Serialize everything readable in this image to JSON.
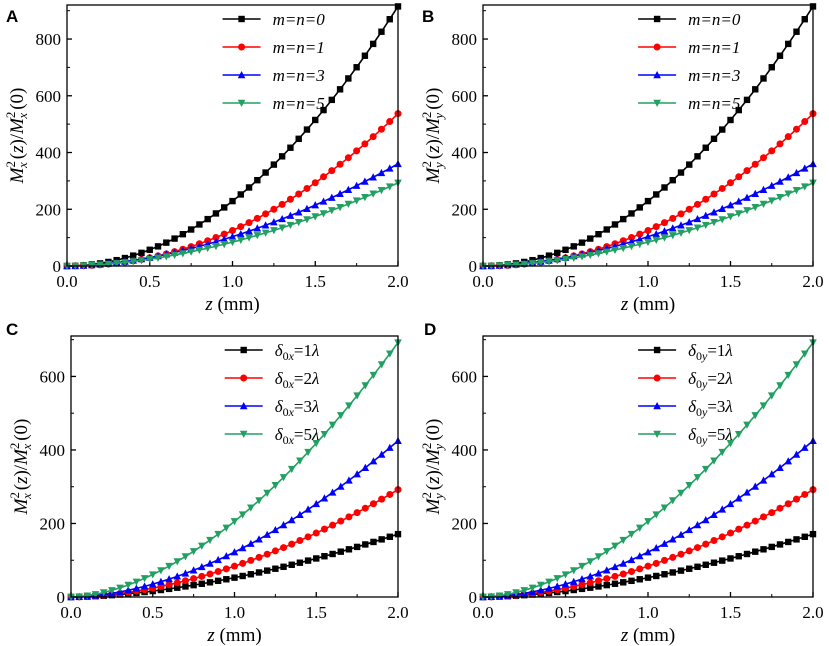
{
  "chart_data": [
    {
      "panel": "A",
      "type": "line",
      "xlabel": "z (mm)",
      "ylabel": "M_x^2(z)/M_x^2(0)",
      "xlim": [
        0,
        2.0
      ],
      "ylim": [
        0,
        920
      ],
      "xticks": [
        0.0,
        0.5,
        1.0,
        1.5,
        2.0
      ],
      "yticks": [
        0,
        200,
        400,
        600,
        800
      ],
      "legend_position": "top-right",
      "series": [
        {
          "name": "m=n=0",
          "color": "#000000",
          "marker": "square",
          "end_value": 915,
          "exponent": 2.0
        },
        {
          "name": "m=n=1",
          "color": "#ff0000",
          "marker": "circle",
          "end_value": 537,
          "exponent": 2.1
        },
        {
          "name": "m=n=3",
          "color": "#0000ff",
          "marker": "triangle-up",
          "end_value": 360,
          "exponent": 1.8
        },
        {
          "name": "m=n=5",
          "color": "#21a062",
          "marker": "triangle-down",
          "end_value": 293,
          "exponent": 1.8
        }
      ]
    },
    {
      "panel": "B",
      "type": "line",
      "xlabel": "z (mm)",
      "ylabel": "M_y^2(z)/M_y^2(0)",
      "xlim": [
        0,
        2.0
      ],
      "ylim": [
        0,
        920
      ],
      "xticks": [
        0.0,
        0.5,
        1.0,
        1.5,
        2.0
      ],
      "yticks": [
        0,
        200,
        400,
        600,
        800
      ],
      "legend_position": "top-right",
      "series": [
        {
          "name": "m=n=0",
          "color": "#000000",
          "marker": "square",
          "end_value": 915,
          "exponent": 2.0
        },
        {
          "name": "m=n=1",
          "color": "#ff0000",
          "marker": "circle",
          "end_value": 537,
          "exponent": 2.1
        },
        {
          "name": "m=n=3",
          "color": "#0000ff",
          "marker": "triangle-up",
          "end_value": 360,
          "exponent": 1.8
        },
        {
          "name": "m=n=5",
          "color": "#21a062",
          "marker": "triangle-down",
          "end_value": 293,
          "exponent": 1.8
        }
      ]
    },
    {
      "panel": "C",
      "type": "line",
      "xlabel": "z (mm)",
      "ylabel": "M_x^2(z)/M_x^2(0)",
      "xlim": [
        0,
        2.0
      ],
      "ylim": [
        0,
        710
      ],
      "xticks": [
        0.0,
        0.5,
        1.0,
        1.5,
        2.0
      ],
      "yticks": [
        0,
        200,
        400,
        600
      ],
      "legend_position": "top-right",
      "series": [
        {
          "name": "δ0x=1λ",
          "color": "#000000",
          "marker": "square",
          "end_value": 171,
          "exponent": 1.7
        },
        {
          "name": "δ0x=2λ",
          "color": "#ff0000",
          "marker": "circle",
          "end_value": 292,
          "exponent": 1.8
        },
        {
          "name": "δ0x=3λ",
          "color": "#0000ff",
          "marker": "triangle-up",
          "end_value": 425,
          "exponent": 1.8
        },
        {
          "name": "δ0x=5λ",
          "color": "#21a062",
          "marker": "triangle-down",
          "end_value": 692,
          "exponent": 1.75
        }
      ]
    },
    {
      "panel": "D",
      "type": "line",
      "xlabel": "z (mm)",
      "ylabel": "M_y^2(z)/M_y^2(0)",
      "xlim": [
        0,
        2.0
      ],
      "ylim": [
        0,
        710
      ],
      "xticks": [
        0.0,
        0.5,
        1.0,
        1.5,
        2.0
      ],
      "yticks": [
        0,
        200,
        400,
        600
      ],
      "legend_position": "top-right",
      "series": [
        {
          "name": "δ0y=1λ",
          "color": "#000000",
          "marker": "square",
          "end_value": 171,
          "exponent": 1.7
        },
        {
          "name": "δ0y=2λ",
          "color": "#ff0000",
          "marker": "circle",
          "end_value": 292,
          "exponent": 1.8
        },
        {
          "name": "δ0y=3λ",
          "color": "#0000ff",
          "marker": "triangle-up",
          "end_value": 425,
          "exponent": 1.8
        },
        {
          "name": "δ0y=5λ",
          "color": "#21a062",
          "marker": "triangle-down",
          "end_value": 692,
          "exponent": 1.75
        }
      ]
    }
  ]
}
